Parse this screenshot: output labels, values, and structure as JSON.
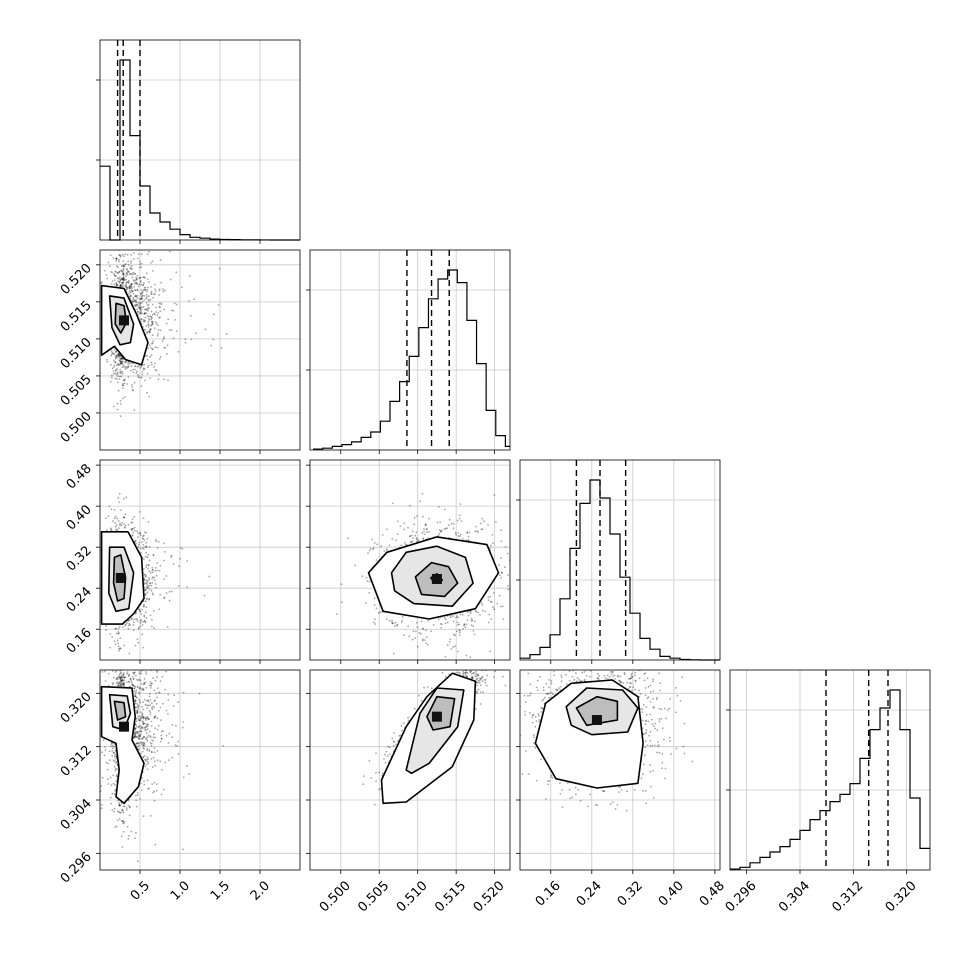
{
  "chart_data": {
    "type": "corner",
    "grid": true,
    "parameters": [
      {
        "xlim": [
          0.0,
          2.5
        ],
        "ylim": [
          0.495,
          0.522
        ],
        "ticks": [
          0.5,
          1.0,
          1.5,
          2.0
        ],
        "tick_labels": [
          "0.5",
          "1.0",
          "1.5",
          "2.0"
        ],
        "quantiles": [
          0.22,
          0.29,
          0.5
        ]
      },
      {
        "xlim": [
          0.496,
          0.522
        ],
        "ylim": [
          0.495,
          0.522
        ],
        "ticks": [
          0.5,
          0.505,
          0.51,
          0.515,
          0.52
        ],
        "tick_labels": [
          "0.500",
          "0.505",
          "0.510",
          "0.515",
          "0.520"
        ],
        "quantiles": [
          0.5086,
          0.5118,
          0.5141
        ]
      },
      {
        "xlim": [
          0.1,
          0.49
        ],
        "ylim": [
          0.1,
          0.49
        ],
        "ticks": [
          0.16,
          0.24,
          0.32,
          0.4,
          0.48
        ],
        "tick_labels": [
          "0.16",
          "0.24",
          "0.32",
          "0.40",
          "0.48"
        ],
        "quantiles": [
          0.21,
          0.256,
          0.306
        ]
      },
      {
        "xlim": [
          0.2935,
          0.3235
        ],
        "ylim": [
          0.2935,
          0.3235
        ],
        "ticks": [
          0.296,
          0.304,
          0.312,
          0.32
        ],
        "tick_labels": [
          "0.296",
          "0.304",
          "0.312",
          "0.320"
        ],
        "quantiles": [
          0.3079,
          0.3143,
          0.3172
        ]
      }
    ],
    "histograms": [
      {
        "param": 0,
        "bin_start": 0.0,
        "bin_width": 0.125,
        "counts": [
          0.41,
          0.0,
          1.0,
          0.58,
          0.3,
          0.15,
          0.1,
          0.06,
          0.03,
          0.015,
          0.01,
          0.005,
          0.003,
          0.002,
          0.001,
          0.0005,
          0.0003,
          0.0,
          0.0,
          0.0
        ]
      },
      {
        "param": 1,
        "bin_start": 0.4964,
        "bin_width": 0.00125,
        "counts": [
          0.005,
          0.01,
          0.02,
          0.03,
          0.045,
          0.07,
          0.1,
          0.16,
          0.27,
          0.38,
          0.52,
          0.68,
          0.84,
          0.95,
          1.0,
          0.93,
          0.72,
          0.48,
          0.22,
          0.08,
          0.02
        ]
      },
      {
        "param": 2,
        "bin_start": 0.1,
        "bin_width": 0.0195,
        "counts": [
          0.01,
          0.03,
          0.07,
          0.14,
          0.34,
          0.62,
          0.87,
          1.0,
          0.9,
          0.7,
          0.46,
          0.26,
          0.12,
          0.06,
          0.02,
          0.01,
          0.003,
          0.001,
          0.0,
          0.0
        ]
      },
      {
        "param": 3,
        "bin_start": 0.2935,
        "bin_width": 0.0015,
        "counts": [
          0.005,
          0.015,
          0.04,
          0.07,
          0.1,
          0.13,
          0.17,
          0.22,
          0.28,
          0.33,
          0.38,
          0.42,
          0.48,
          0.62,
          0.78,
          0.9,
          1.0,
          0.78,
          0.4,
          0.12,
          0.03
        ]
      }
    ],
    "scatter_2d": [
      {
        "x_param": 0,
        "y_param": 1,
        "center": [
          0.3,
          0.5125
        ],
        "spread": [
          0.2,
          0.004
        ],
        "contours": [
          {
            "level": 1,
            "points": [
              [
                0.02,
                0.5172
              ],
              [
                0.3,
                0.5168
              ],
              [
                0.45,
                0.5135
              ],
              [
                0.6,
                0.5095
              ],
              [
                0.52,
                0.5065
              ],
              [
                0.32,
                0.5072
              ],
              [
                0.18,
                0.509
              ],
              [
                0.02,
                0.5078
              ]
            ]
          },
          {
            "level": 2,
            "points": [
              [
                0.12,
                0.5158
              ],
              [
                0.3,
                0.5155
              ],
              [
                0.42,
                0.512
              ],
              [
                0.38,
                0.5095
              ],
              [
                0.25,
                0.5092
              ],
              [
                0.15,
                0.5115
              ]
            ]
          },
          {
            "level": 3,
            "points": [
              [
                0.2,
                0.5148
              ],
              [
                0.3,
                0.5145
              ],
              [
                0.33,
                0.5122
              ],
              [
                0.26,
                0.5108
              ],
              [
                0.19,
                0.512
              ]
            ]
          }
        ]
      },
      {
        "x_param": 0,
        "y_param": 2,
        "center": [
          0.26,
          0.26
        ],
        "spread": [
          0.18,
          0.05
        ],
        "contours": [
          {
            "level": 1,
            "points": [
              [
                0.02,
                0.35
              ],
              [
                0.35,
                0.35
              ],
              [
                0.52,
                0.3
              ],
              [
                0.55,
                0.22
              ],
              [
                0.42,
                0.19
              ],
              [
                0.28,
                0.17
              ],
              [
                0.02,
                0.17
              ]
            ]
          },
          {
            "level": 2,
            "points": [
              [
                0.12,
                0.32
              ],
              [
                0.3,
                0.32
              ],
              [
                0.42,
                0.27
              ],
              [
                0.36,
                0.2
              ],
              [
                0.2,
                0.195
              ],
              [
                0.11,
                0.23
              ]
            ]
          },
          {
            "level": 3,
            "points": [
              [
                0.18,
                0.3
              ],
              [
                0.26,
                0.305
              ],
              [
                0.32,
                0.26
              ],
              [
                0.3,
                0.22
              ],
              [
                0.22,
                0.215
              ],
              [
                0.17,
                0.25
              ]
            ]
          }
        ]
      },
      {
        "x_param": 0,
        "y_param": 3,
        "center": [
          0.3,
          0.315
        ],
        "spread": [
          0.2,
          0.006
        ],
        "contours": [
          {
            "level": 1,
            "points": [
              [
                0.02,
                0.321
              ],
              [
                0.4,
                0.3208
              ],
              [
                0.44,
                0.3165
              ],
              [
                0.4,
                0.313
              ],
              [
                0.55,
                0.3095
              ],
              [
                0.48,
                0.306
              ],
              [
                0.3,
                0.3035
              ],
              [
                0.2,
                0.3045
              ],
              [
                0.24,
                0.3085
              ],
              [
                0.2,
                0.3125
              ],
              [
                0.02,
                0.3135
              ]
            ]
          },
          {
            "level": 2,
            "points": [
              [
                0.12,
                0.3198
              ],
              [
                0.34,
                0.3196
              ],
              [
                0.38,
                0.317
              ],
              [
                0.3,
                0.3145
              ],
              [
                0.16,
                0.315
              ]
            ]
          },
          {
            "level": 3,
            "points": [
              [
                0.18,
                0.3188
              ],
              [
                0.3,
                0.3186
              ],
              [
                0.32,
                0.3165
              ],
              [
                0.22,
                0.316
              ]
            ]
          }
        ]
      },
      {
        "x_param": 1,
        "y_param": 2,
        "center": [
          0.5125,
          0.258
        ],
        "spread": [
          0.0037,
          0.05
        ],
        "contours": [
          {
            "level": 1,
            "points": [
              [
                0.5036,
                0.27
              ],
              [
                0.506,
                0.31
              ],
              [
                0.5125,
                0.34
              ],
              [
                0.519,
                0.325
              ],
              [
                0.5205,
                0.27
              ],
              [
                0.5175,
                0.2
              ],
              [
                0.5115,
                0.18
              ],
              [
                0.5055,
                0.195
              ]
            ]
          },
          {
            "level": 2,
            "points": [
              [
                0.5066,
                0.27
              ],
              [
                0.5085,
                0.31
              ],
              [
                0.5125,
                0.322
              ],
              [
                0.5162,
                0.3
              ],
              [
                0.5172,
                0.25
              ],
              [
                0.5145,
                0.205
              ],
              [
                0.5095,
                0.21
              ],
              [
                0.507,
                0.235
              ]
            ]
          },
          {
            "level": 3,
            "points": [
              [
                0.5097,
                0.262
              ],
              [
                0.5118,
                0.29
              ],
              [
                0.514,
                0.282
              ],
              [
                0.5152,
                0.25
              ],
              [
                0.5135,
                0.224
              ],
              [
                0.5105,
                0.228
              ]
            ]
          },
          {
            "level": 4,
            "points": [
              [
                0.5117,
                0.26
              ],
              [
                0.5125,
                0.268
              ],
              [
                0.5132,
                0.256
              ],
              [
                0.5122,
                0.25
              ]
            ]
          }
        ]
      },
      {
        "x_param": 1,
        "y_param": 3,
        "center": [
          0.5125,
          0.3165
        ],
        "spread": [
          0.003,
          0.004
        ],
        "contours": [
          {
            "level": 1,
            "points": [
              [
                0.5053,
                0.307
              ],
              [
                0.5085,
                0.315
              ],
              [
                0.5112,
                0.3195
              ],
              [
                0.5145,
                0.323
              ],
              [
                0.5175,
                0.3218
              ],
              [
                0.5173,
                0.316
              ],
              [
                0.5145,
                0.309
              ],
              [
                0.5085,
                0.3037
              ],
              [
                0.5055,
                0.3035
              ]
            ]
          },
          {
            "level": 2,
            "points": [
              [
                0.5085,
                0.3085
              ],
              [
                0.5103,
                0.317
              ],
              [
                0.5125,
                0.3208
              ],
              [
                0.516,
                0.3205
              ],
              [
                0.5152,
                0.315
              ],
              [
                0.5115,
                0.3095
              ],
              [
                0.5092,
                0.308
              ]
            ]
          },
          {
            "level": 3,
            "points": [
              [
                0.5112,
                0.3165
              ],
              [
                0.5125,
                0.3195
              ],
              [
                0.5148,
                0.3192
              ],
              [
                0.5142,
                0.315
              ],
              [
                0.512,
                0.3145
              ]
            ]
          }
        ]
      },
      {
        "x_param": 2,
        "y_param": 3,
        "center": [
          0.25,
          0.316
        ],
        "spread": [
          0.06,
          0.005
        ],
        "contours": [
          {
            "level": 1,
            "points": [
              [
                0.15,
                0.3185
              ],
              [
                0.2,
                0.3215
              ],
              [
                0.28,
                0.322
              ],
              [
                0.33,
                0.3195
              ],
              [
                0.34,
                0.3125
              ],
              [
                0.33,
                0.3065
              ],
              [
                0.25,
                0.3058
              ],
              [
                0.17,
                0.3072
              ],
              [
                0.13,
                0.3125
              ]
            ]
          },
          {
            "level": 2,
            "points": [
              [
                0.19,
                0.318
              ],
              [
                0.23,
                0.3208
              ],
              [
                0.3,
                0.3205
              ],
              [
                0.33,
                0.3178
              ],
              [
                0.31,
                0.3142
              ],
              [
                0.24,
                0.3138
              ],
              [
                0.2,
                0.3152
              ]
            ]
          },
          {
            "level": 3,
            "points": [
              [
                0.21,
                0.3178
              ],
              [
                0.25,
                0.3195
              ],
              [
                0.29,
                0.3188
              ],
              [
                0.29,
                0.316
              ],
              [
                0.23,
                0.3152
              ]
            ]
          }
        ]
      }
    ]
  }
}
